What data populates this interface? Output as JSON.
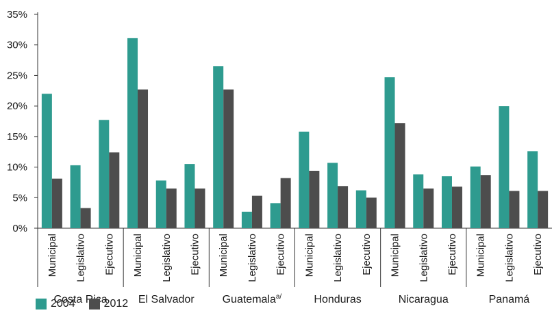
{
  "chart_data": {
    "type": "bar",
    "ylim": [
      0,
      35
    ],
    "yticks": [
      "0%",
      "5%",
      "10%",
      "15%",
      "20%",
      "25%",
      "30%",
      "35%"
    ],
    "grid": false,
    "legend_position": "bottom-left",
    "groups": [
      {
        "name": "Costa Rica",
        "sup": "",
        "categories": [
          "Municipal",
          "Legislativo",
          "Ejecutivo"
        ]
      },
      {
        "name": "El Salvador",
        "sup": "",
        "categories": [
          "Municipal",
          "Legislativo",
          "Ejecutivo"
        ]
      },
      {
        "name": "Guatemala",
        "sup": "a/",
        "categories": [
          "Municipal",
          "Legislativo",
          "Ejecutivo"
        ]
      },
      {
        "name": "Honduras",
        "sup": "",
        "categories": [
          "Municipal",
          "Legislativo",
          "Ejecutivo"
        ]
      },
      {
        "name": "Nicaragua",
        "sup": "",
        "categories": [
          "Municipal",
          "Legislativo",
          "Ejecutivo"
        ]
      },
      {
        "name": "Panamá",
        "sup": "",
        "categories": [
          "Municipal",
          "Legislativo",
          "Ejecutivo"
        ]
      }
    ],
    "series": [
      {
        "name": "2004",
        "color": "#2e9b8f",
        "values": [
          22.0,
          10.3,
          17.7,
          31.1,
          7.8,
          10.5,
          26.5,
          2.7,
          4.1,
          15.8,
          10.7,
          6.2,
          24.7,
          8.8,
          8.5,
          10.1,
          20.0,
          12.6
        ]
      },
      {
        "name": "2012",
        "color": "#4d4d4d",
        "values": [
          8.1,
          3.3,
          12.4,
          22.7,
          6.5,
          6.5,
          22.7,
          5.3,
          8.2,
          9.4,
          6.9,
          5.0,
          17.2,
          6.5,
          6.8,
          8.7,
          6.1,
          6.1
        ]
      }
    ]
  },
  "legend": {
    "items": [
      {
        "label": "2004",
        "color": "#2e9b8f"
      },
      {
        "label": "2012",
        "color": "#4d4d4d"
      }
    ]
  }
}
